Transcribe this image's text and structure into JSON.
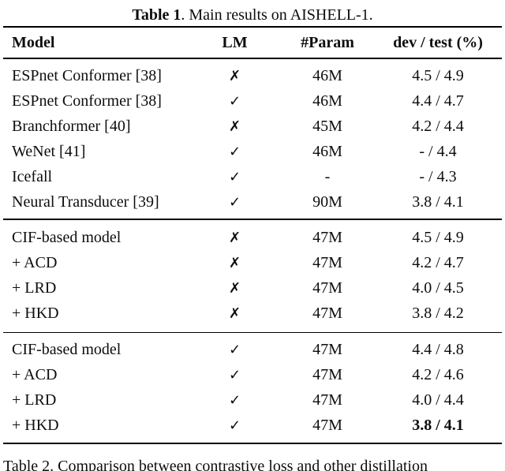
{
  "title": {
    "label": "Table 1",
    "rest": ". Main results on AISHELL-1."
  },
  "columns": {
    "model": "Model",
    "lm": "LM",
    "param": "#Param",
    "devtest": "dev / test (%)"
  },
  "marks": {
    "check": "✓",
    "cross": "✗"
  },
  "sections": [
    {
      "rows": [
        {
          "model": "ESPnet Conformer [38]",
          "indent": false,
          "lm": "cross",
          "param": "46M",
          "devtest": "4.5 / 4.9",
          "bold_devtest": false
        },
        {
          "model": "ESPnet Conformer [38]",
          "indent": false,
          "lm": "check",
          "param": "46M",
          "devtest": "4.4 / 4.7",
          "bold_devtest": false
        },
        {
          "model": "Branchformer [40]",
          "indent": false,
          "lm": "cross",
          "param": "45M",
          "devtest": "4.2 / 4.4",
          "bold_devtest": false
        },
        {
          "model": "WeNet [41]",
          "indent": false,
          "lm": "check",
          "param": "46M",
          "devtest": "- / 4.4",
          "bold_devtest": false
        },
        {
          "model": "Icefall",
          "indent": false,
          "lm": "check",
          "param": "-",
          "devtest": "- / 4.3",
          "bold_devtest": false
        },
        {
          "model": "Neural Transducer [39]",
          "indent": false,
          "lm": "check",
          "param": "90M",
          "devtest": "3.8 / 4.1",
          "bold_devtest": false
        }
      ]
    },
    {
      "rows": [
        {
          "model": "CIF-based model",
          "indent": false,
          "lm": "cross",
          "param": "47M",
          "devtest": "4.5 / 4.9",
          "bold_devtest": false
        },
        {
          "model": "+ ACD",
          "indent": true,
          "lm": "cross",
          "param": "47M",
          "devtest": "4.2 / 4.7",
          "bold_devtest": false
        },
        {
          "model": "+ LRD",
          "indent": true,
          "lm": "cross",
          "param": "47M",
          "devtest": "4.0 / 4.5",
          "bold_devtest": false
        },
        {
          "model": "+ HKD",
          "indent": true,
          "lm": "cross",
          "param": "47M",
          "devtest": "3.8 / 4.2",
          "bold_devtest": false
        }
      ]
    },
    {
      "rows": [
        {
          "model": "CIF-based model",
          "indent": false,
          "lm": "check",
          "param": "47M",
          "devtest": "4.4 / 4.8",
          "bold_devtest": false
        },
        {
          "model": "+ ACD",
          "indent": true,
          "lm": "check",
          "param": "47M",
          "devtest": "4.2 / 4.6",
          "bold_devtest": false
        },
        {
          "model": "+ LRD",
          "indent": true,
          "lm": "check",
          "param": "47M",
          "devtest": "4.0 / 4.4",
          "bold_devtest": false
        },
        {
          "model": "+ HKD",
          "indent": true,
          "lm": "check",
          "param": "47M",
          "devtest": "3.8 / 4.1",
          "bold_devtest": true
        }
      ]
    }
  ],
  "caption_below": {
    "label": "Table 2",
    "rest": ". Comparison between contrastive loss and other distillation"
  }
}
